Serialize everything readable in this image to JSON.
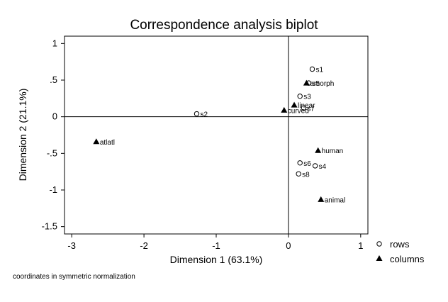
{
  "chart_data": {
    "type": "scatter",
    "title": "Correspondence analysis biplot",
    "xlabel": "Dimension 1 (63.1%)",
    "ylabel": "Dimension 2 (21.1%)",
    "xlim": [
      -3.1,
      1.1
    ],
    "ylim": [
      -1.6,
      1.1
    ],
    "xticks": [
      -3,
      -2,
      -1,
      0,
      1
    ],
    "xtick_labels": [
      "-3",
      "-2",
      "-1",
      "0",
      "1"
    ],
    "yticks": [
      1,
      0.5,
      0,
      -0.5,
      -1,
      -1.5
    ],
    "ytick_labels": [
      "1",
      ".5",
      "0",
      "-.5",
      "-1",
      "-1.5"
    ],
    "reference_lines": {
      "x": 0,
      "y": 0
    },
    "grid": false,
    "legend_position": "bottom-right",
    "note": "coordinates in symmetric normalization",
    "series": [
      {
        "name": "rows",
        "marker": "open-circle",
        "points": [
          {
            "label": "s1",
            "x": 0.33,
            "y": 0.65
          },
          {
            "label": "s5",
            "x": 0.28,
            "y": 0.46
          },
          {
            "label": "s3",
            "x": 0.16,
            "y": 0.28
          },
          {
            "label": "s7",
            "x": 0.21,
            "y": 0.12
          },
          {
            "label": "s2",
            "x": -1.27,
            "y": 0.04
          },
          {
            "label": "s6",
            "x": 0.16,
            "y": -0.63
          },
          {
            "label": "s4",
            "x": 0.37,
            "y": -0.67
          },
          {
            "label": "s8",
            "x": 0.14,
            "y": -0.78
          }
        ]
      },
      {
        "name": "columns",
        "marker": "filled-triangle",
        "points": [
          {
            "label": "amorph",
            "x": 0.25,
            "y": 0.46
          },
          {
            "label": "linear",
            "x": 0.08,
            "y": 0.16
          },
          {
            "label": "curved",
            "x": -0.06,
            "y": 0.09
          },
          {
            "label": "atlatl",
            "x": -2.66,
            "y": -0.34
          },
          {
            "label": "human",
            "x": 0.41,
            "y": -0.46
          },
          {
            "label": "animal",
            "x": 0.45,
            "y": -1.13
          }
        ]
      }
    ]
  }
}
